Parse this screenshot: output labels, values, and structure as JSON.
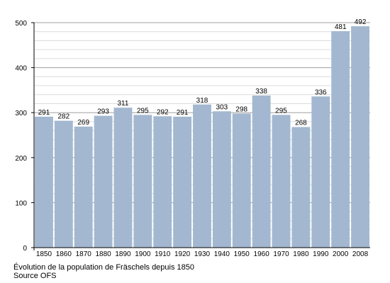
{
  "chart_data": {
    "type": "bar",
    "categories": [
      "1850",
      "1860",
      "1870",
      "1880",
      "1890",
      "1900",
      "1910",
      "1920",
      "1930",
      "1940",
      "1950",
      "1960",
      "1970",
      "1980",
      "1990",
      "2000",
      "2008"
    ],
    "values": [
      291,
      282,
      269,
      293,
      311,
      295,
      292,
      291,
      318,
      303,
      298,
      338,
      295,
      268,
      336,
      481,
      492
    ],
    "yticks": [
      "0",
      "100",
      "200",
      "300",
      "400",
      "500"
    ],
    "ylim": [
      0,
      500
    ],
    "grid": true,
    "bar_color": "#a3b8d0"
  },
  "caption": {
    "line1": "Évolution de la population de Fräschels depuis 1850",
    "line2": "Source OFS"
  }
}
